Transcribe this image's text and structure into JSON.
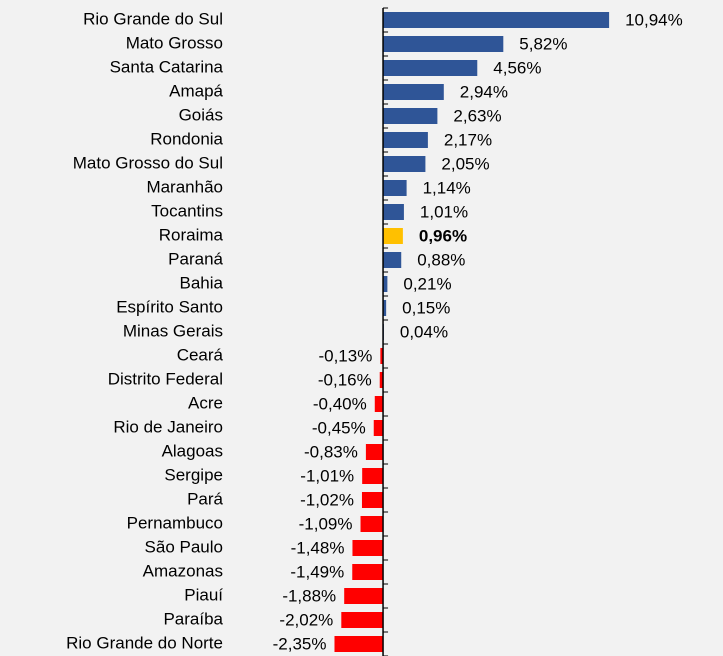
{
  "chart_data": {
    "type": "barh",
    "categories": [
      "Rio Grande do Sul",
      "Mato Grosso",
      "Santa Catarina",
      "Amapá",
      "Goiás",
      "Rondonia",
      "Mato Grosso do Sul",
      "Maranhão",
      "Tocantins",
      "Roraima",
      "Paraná",
      "Bahia",
      "Espírito Santo",
      "Minas Gerais",
      "Ceará",
      "Distrito Federal",
      "Acre",
      "Rio de Janeiro",
      "Alagoas",
      "Sergipe",
      "Pará",
      "Pernambuco",
      "São Paulo",
      "Amazonas",
      "Piauí",
      "Paraíba",
      "Rio Grande do Norte"
    ],
    "values": [
      10.94,
      5.82,
      4.56,
      2.94,
      2.63,
      2.17,
      2.05,
      1.14,
      1.01,
      0.96,
      0.88,
      0.21,
      0.15,
      0.04,
      -0.13,
      -0.16,
      -0.4,
      -0.45,
      -0.83,
      -1.01,
      -1.02,
      -1.09,
      -1.48,
      -1.49,
      -1.88,
      -2.02,
      -2.35
    ],
    "value_labels": [
      "10,94%",
      "5,82%",
      "4,56%",
      "2,94%",
      "2,63%",
      "2,17%",
      "2,05%",
      "1,14%",
      "1,01%",
      "0,96%",
      "0,88%",
      "0,21%",
      "0,15%",
      "0,04%",
      "-0,13%",
      "-0,16%",
      "-0,40%",
      "-0,45%",
      "-0,83%",
      "-1,01%",
      "-1,02%",
      "-1,09%",
      "-1,48%",
      "-1,49%",
      "-1,88%",
      "-2,02%",
      "-2,35%"
    ],
    "colors": [
      "#2f5597",
      "#2f5597",
      "#2f5597",
      "#2f5597",
      "#2f5597",
      "#2f5597",
      "#2f5597",
      "#2f5597",
      "#2f5597",
      "#ffc000",
      "#2f5597",
      "#2f5597",
      "#2f5597",
      "#2f5597",
      "#ff0000",
      "#ff0000",
      "#ff0000",
      "#ff0000",
      "#ff0000",
      "#ff0000",
      "#ff0000",
      "#ff0000",
      "#ff0000",
      "#ff0000",
      "#ff0000",
      "#ff0000",
      "#ff0000"
    ],
    "highlight": "Roraima",
    "xlim": [
      -7,
      15
    ]
  }
}
